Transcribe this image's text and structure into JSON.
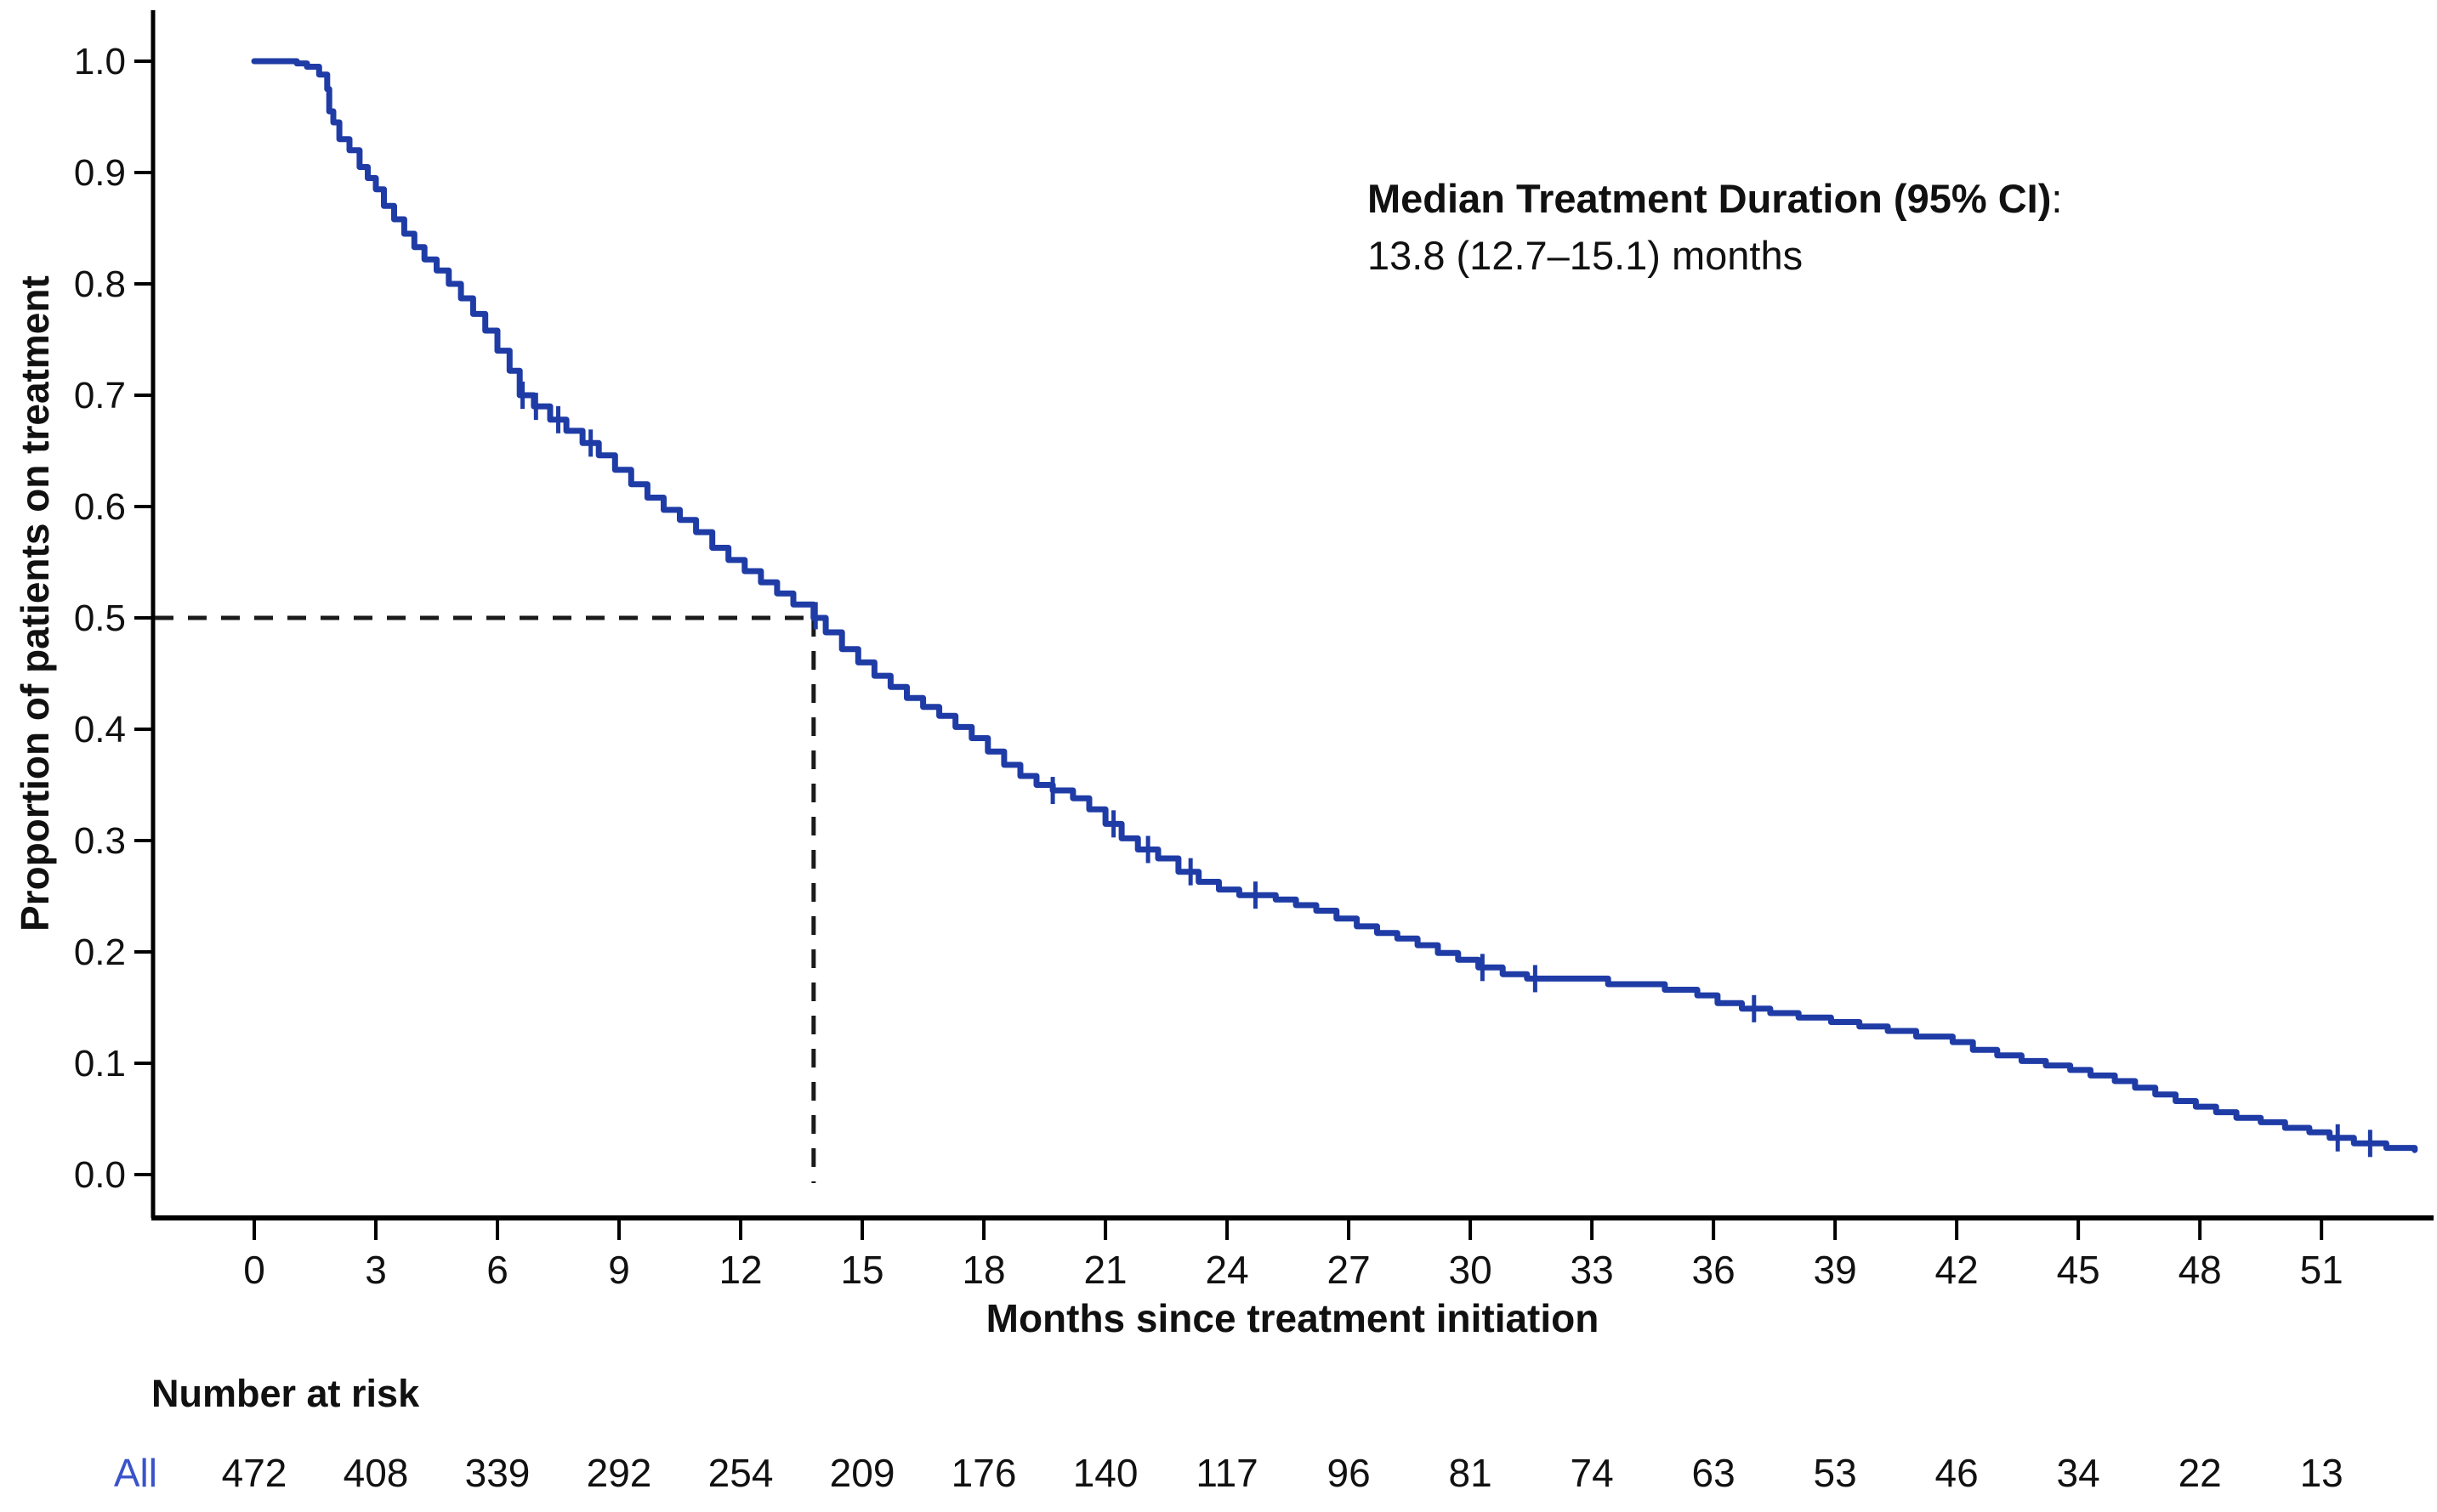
{
  "annotation": {
    "heading": "Median Treatment Duration (95% CI)",
    "heading_suffix": ":",
    "value_line": "13.8 (12.7–15.1) months"
  },
  "axes": {
    "x_label": "Months since treatment initiation",
    "y_label": "Proportion of patients on treatment"
  },
  "risk_table": {
    "header": "Number at risk",
    "group_label": "All"
  },
  "colors": {
    "curve": "#1f3ca6",
    "risk_label_blue": "#3a53c9",
    "axis": "#000000",
    "dashed_guide": "#1a1a1a",
    "text": "#111111"
  },
  "chart_data": {
    "type": "line",
    "subtype": "kaplan_meier_step",
    "title": "Median Treatment Duration (95% CI): 13.8 (12.7–15.1) months",
    "xlabel": "Months since treatment initiation",
    "ylabel": "Proportion of patients on treatment",
    "xlim": [
      0,
      53.5
    ],
    "ylim": [
      0.0,
      1.0
    ],
    "grid": false,
    "legend_position": "none",
    "x_ticks": [
      0,
      3,
      6,
      9,
      12,
      15,
      18,
      21,
      24,
      27,
      30,
      33,
      36,
      39,
      42,
      45,
      48,
      51
    ],
    "y_ticks": [
      0.0,
      0.1,
      0.2,
      0.3,
      0.4,
      0.5,
      0.6,
      0.7,
      0.8,
      0.9,
      1.0
    ],
    "y_tick_labels": [
      "0.0",
      "0.1",
      "0.2",
      "0.3",
      "0.4",
      "0.5",
      "0.6",
      "0.7",
      "0.8",
      "0.9",
      "1.0"
    ],
    "median_guide": {
      "x": 13.8,
      "y": 0.5
    },
    "median_months": 13.8,
    "median_ci_lower": 12.7,
    "median_ci_upper": 15.1,
    "series": [
      {
        "name": "All",
        "color": "#1f3ca6",
        "step_points": [
          [
            0,
            1.0
          ],
          [
            1.05,
            0.998
          ],
          [
            1.3,
            0.995
          ],
          [
            1.6,
            0.988
          ],
          [
            1.8,
            0.975
          ],
          [
            1.85,
            0.955
          ],
          [
            1.95,
            0.945
          ],
          [
            2.1,
            0.93
          ],
          [
            2.35,
            0.92
          ],
          [
            2.6,
            0.905
          ],
          [
            2.8,
            0.895
          ],
          [
            3.0,
            0.885
          ],
          [
            3.2,
            0.87
          ],
          [
            3.45,
            0.858
          ],
          [
            3.7,
            0.845
          ],
          [
            3.95,
            0.833
          ],
          [
            4.2,
            0.822
          ],
          [
            4.5,
            0.812
          ],
          [
            4.8,
            0.8
          ],
          [
            5.1,
            0.787
          ],
          [
            5.4,
            0.773
          ],
          [
            5.7,
            0.758
          ],
          [
            6.0,
            0.74
          ],
          [
            6.3,
            0.722
          ],
          [
            6.55,
            0.7
          ],
          [
            6.9,
            0.69
          ],
          [
            7.3,
            0.678
          ],
          [
            7.7,
            0.668
          ],
          [
            8.1,
            0.657
          ],
          [
            8.5,
            0.646
          ],
          [
            8.9,
            0.633
          ],
          [
            9.3,
            0.62
          ],
          [
            9.7,
            0.608
          ],
          [
            10.1,
            0.597
          ],
          [
            10.5,
            0.588
          ],
          [
            10.9,
            0.577
          ],
          [
            11.3,
            0.563
          ],
          [
            11.7,
            0.552
          ],
          [
            12.1,
            0.542
          ],
          [
            12.5,
            0.532
          ],
          [
            12.9,
            0.522
          ],
          [
            13.3,
            0.512
          ],
          [
            13.8,
            0.5
          ],
          [
            14.1,
            0.487
          ],
          [
            14.5,
            0.472
          ],
          [
            14.9,
            0.46
          ],
          [
            15.3,
            0.448
          ],
          [
            15.7,
            0.438
          ],
          [
            16.1,
            0.428
          ],
          [
            16.5,
            0.42
          ],
          [
            16.9,
            0.412
          ],
          [
            17.3,
            0.402
          ],
          [
            17.7,
            0.392
          ],
          [
            18.1,
            0.38
          ],
          [
            18.5,
            0.368
          ],
          [
            18.9,
            0.358
          ],
          [
            19.3,
            0.35
          ],
          [
            19.7,
            0.345
          ],
          [
            20.2,
            0.338
          ],
          [
            20.6,
            0.328
          ],
          [
            21.0,
            0.315
          ],
          [
            21.4,
            0.302
          ],
          [
            21.8,
            0.292
          ],
          [
            22.3,
            0.284
          ],
          [
            22.8,
            0.272
          ],
          [
            23.3,
            0.263
          ],
          [
            23.8,
            0.256
          ],
          [
            24.3,
            0.251
          ],
          [
            25.2,
            0.247
          ],
          [
            25.7,
            0.242
          ],
          [
            26.2,
            0.237
          ],
          [
            26.7,
            0.23
          ],
          [
            27.2,
            0.223
          ],
          [
            27.7,
            0.217
          ],
          [
            28.2,
            0.212
          ],
          [
            28.7,
            0.206
          ],
          [
            29.2,
            0.199
          ],
          [
            29.7,
            0.193
          ],
          [
            30.2,
            0.186
          ],
          [
            30.8,
            0.18
          ],
          [
            31.4,
            0.176
          ],
          [
            33.4,
            0.171
          ],
          [
            34.8,
            0.166
          ],
          [
            35.6,
            0.161
          ],
          [
            36.1,
            0.154
          ],
          [
            36.7,
            0.149
          ],
          [
            37.4,
            0.145
          ],
          [
            38.1,
            0.141
          ],
          [
            38.9,
            0.137
          ],
          [
            39.6,
            0.133
          ],
          [
            40.3,
            0.129
          ],
          [
            41.0,
            0.124
          ],
          [
            41.9,
            0.119
          ],
          [
            42.4,
            0.112
          ],
          [
            43.0,
            0.107
          ],
          [
            43.6,
            0.102
          ],
          [
            44.2,
            0.098
          ],
          [
            44.8,
            0.094
          ],
          [
            45.3,
            0.089
          ],
          [
            45.9,
            0.084
          ],
          [
            46.4,
            0.078
          ],
          [
            46.9,
            0.072
          ],
          [
            47.4,
            0.066
          ],
          [
            47.9,
            0.061
          ],
          [
            48.4,
            0.056
          ],
          [
            48.9,
            0.051
          ],
          [
            49.5,
            0.047
          ],
          [
            50.1,
            0.042
          ],
          [
            50.7,
            0.038
          ],
          [
            51.2,
            0.033
          ],
          [
            51.8,
            0.028
          ],
          [
            52.6,
            0.024
          ],
          [
            53.3,
            0.022
          ]
        ],
        "censor_marks": [
          [
            6.62,
            0.7
          ],
          [
            6.95,
            0.69
          ],
          [
            7.5,
            0.678
          ],
          [
            8.3,
            0.657
          ],
          [
            13.85,
            0.502
          ],
          [
            19.7,
            0.345
          ],
          [
            21.2,
            0.315
          ],
          [
            22.05,
            0.292
          ],
          [
            23.1,
            0.272
          ],
          [
            24.7,
            0.251
          ],
          [
            30.3,
            0.186
          ],
          [
            31.6,
            0.176
          ],
          [
            37.0,
            0.149
          ],
          [
            51.4,
            0.033
          ],
          [
            52.2,
            0.028
          ]
        ]
      }
    ],
    "number_at_risk": {
      "header": "Number at risk",
      "times": [
        0,
        3,
        6,
        9,
        12,
        15,
        18,
        21,
        24,
        27,
        30,
        33,
        36,
        39,
        42,
        45,
        48,
        51
      ],
      "groups": [
        {
          "label": "All",
          "counts": [
            472,
            408,
            339,
            292,
            254,
            209,
            176,
            140,
            117,
            96,
            81,
            74,
            63,
            53,
            46,
            34,
            22,
            13
          ]
        }
      ]
    }
  }
}
